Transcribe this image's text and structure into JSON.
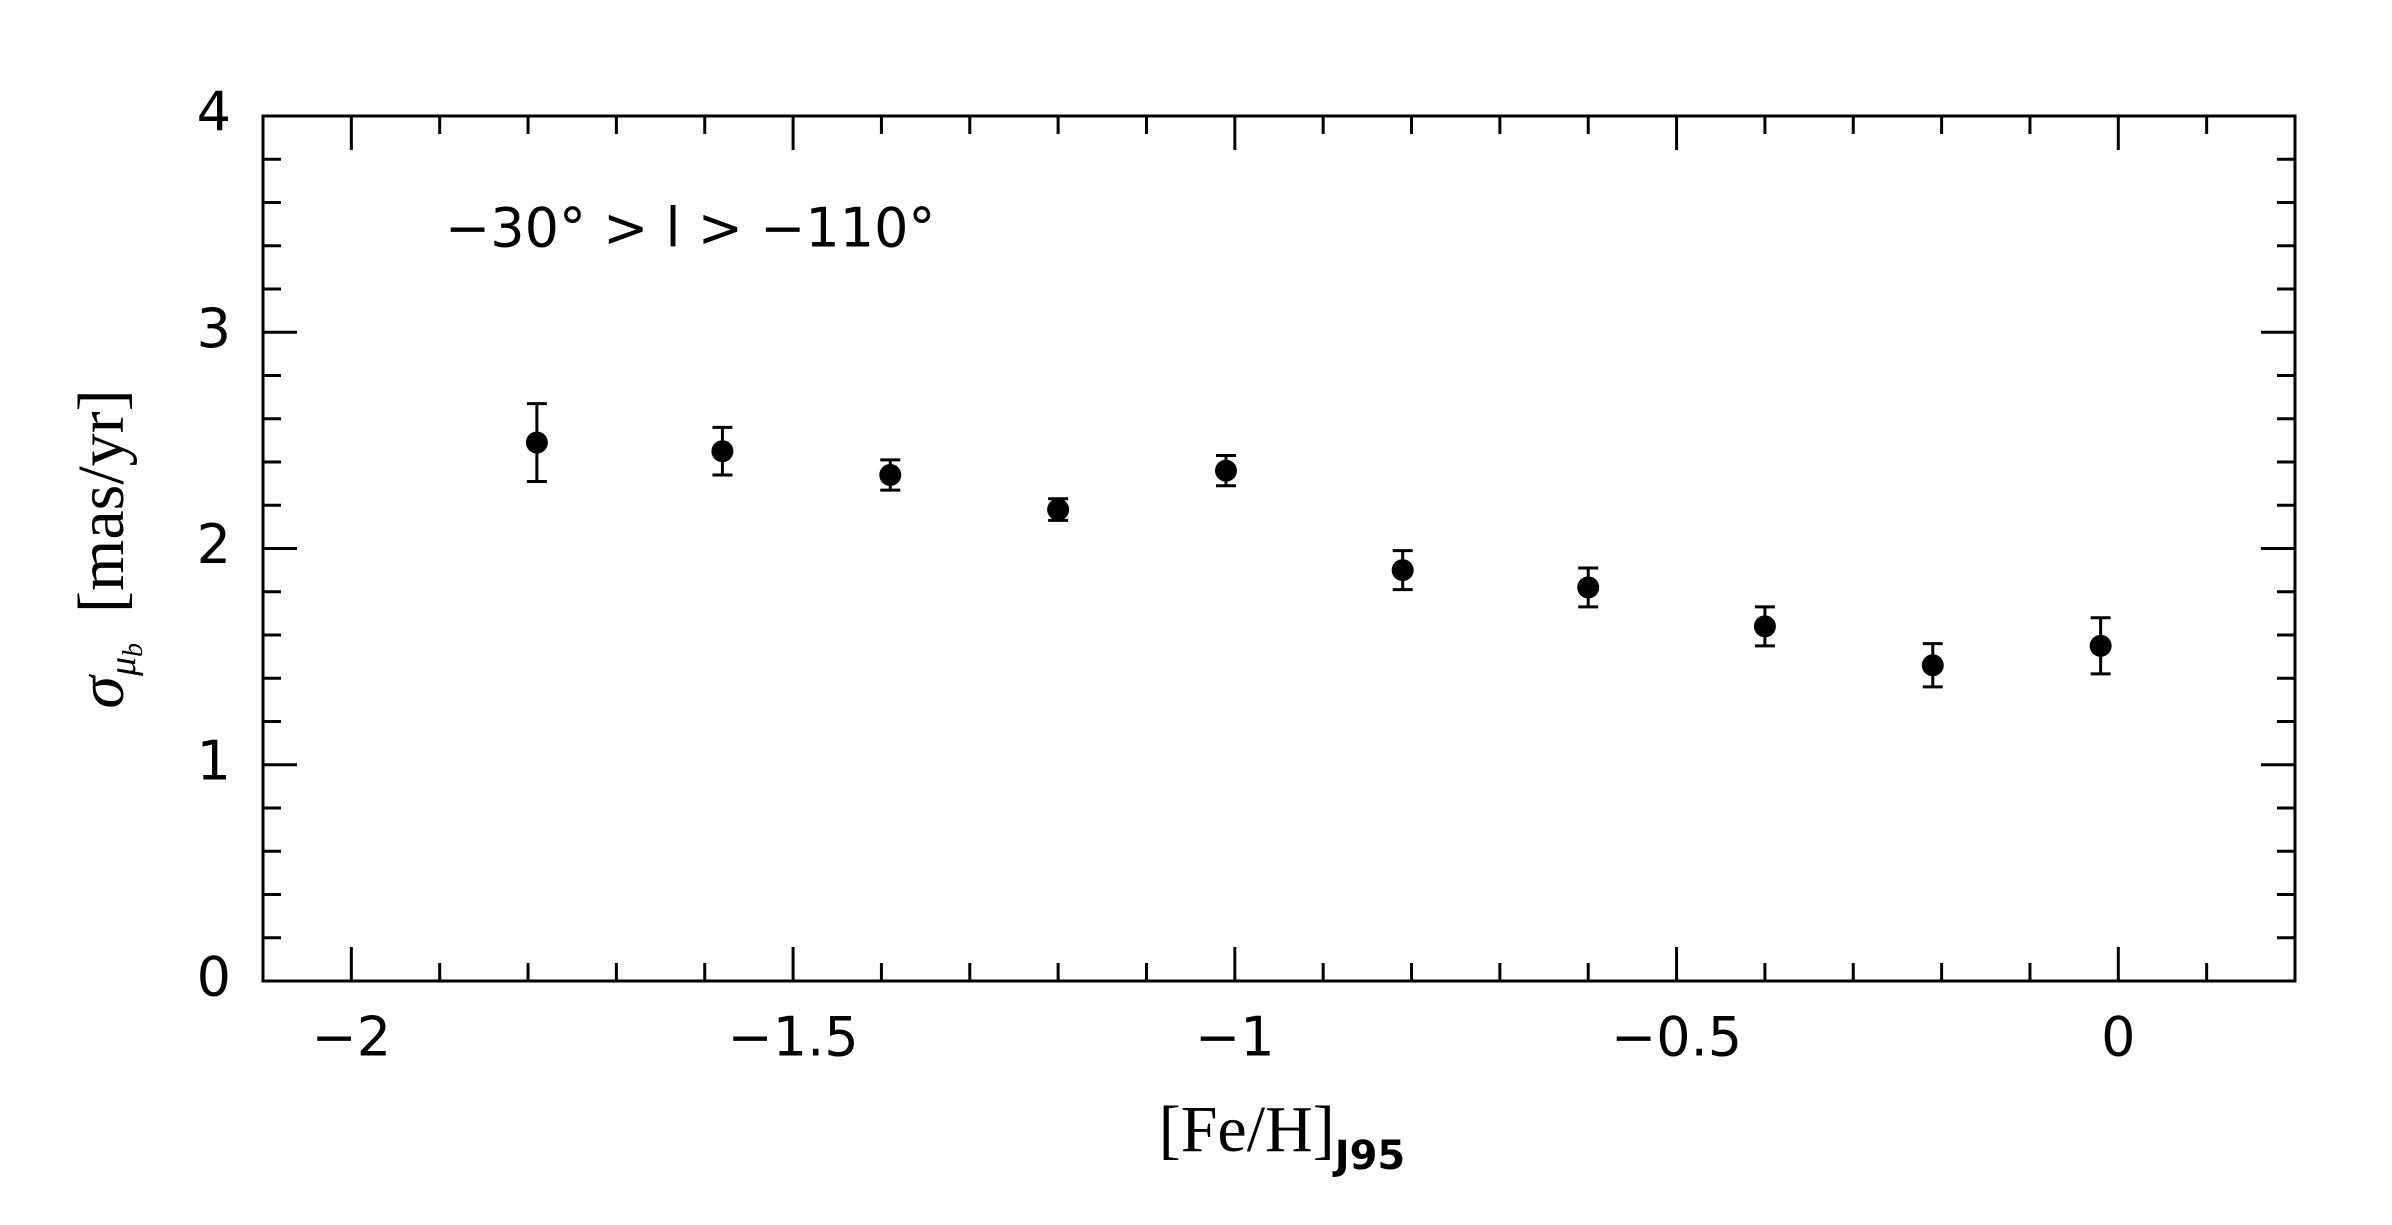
{
  "chart_data": {
    "type": "errorbar",
    "annotation": "−30° > l > −110°",
    "xlabel": {
      "text": "[Fe/H]",
      "subscript": "J95"
    },
    "ylabel": {
      "symbol": "σ",
      "subscript": "μ",
      "subsubscript": "b",
      "unit": "[mas/yr]"
    },
    "xlim": [
      -2.1,
      0.2
    ],
    "ylim": [
      0,
      4
    ],
    "xticks": [
      {
        "value": -2,
        "label": "−2"
      },
      {
        "value": -1.5,
        "label": "−1.5"
      },
      {
        "value": -1,
        "label": "−1"
      },
      {
        "value": -0.5,
        "label": "−0.5"
      },
      0
    ],
    "yticks": [
      0,
      1,
      2,
      3,
      4
    ],
    "xminorticks": [
      -1.9,
      -1.8,
      -1.7,
      -1.6,
      -1.4,
      -1.3,
      -1.2,
      -1.1,
      -0.9,
      -0.8,
      -0.7,
      -0.6,
      -0.4,
      -0.3,
      -0.2,
      -0.1,
      0.1
    ],
    "yminorticks": [
      0.2,
      0.4,
      0.6,
      0.8,
      1.2,
      1.4,
      1.6,
      1.8,
      2.2,
      2.4,
      2.6,
      2.8,
      3.2,
      3.4,
      3.6,
      3.8
    ],
    "color": "#000000",
    "x": [
      -1.79,
      -1.58,
      -1.39,
      -1.2,
      -1.01,
      -0.81,
      -0.6,
      -0.4,
      -0.21,
      -0.02
    ],
    "y": [
      2.49,
      2.45,
      2.34,
      2.18,
      2.36,
      1.9,
      1.82,
      1.64,
      1.46,
      1.55
    ],
    "yerr": [
      0.18,
      0.11,
      0.07,
      0.05,
      0.07,
      0.09,
      0.09,
      0.09,
      0.1,
      0.13
    ]
  }
}
